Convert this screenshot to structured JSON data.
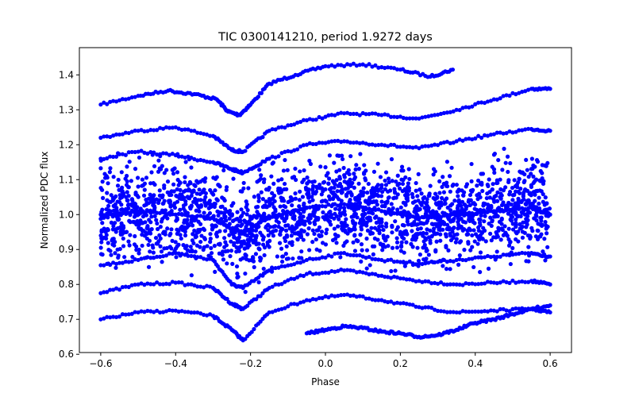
{
  "chart_data": {
    "type": "scatter",
    "title": "TIC 0300141210, period 1.9272 days",
    "xlabel": "Phase",
    "ylabel": "Normalized PDC flux",
    "xlim": [
      -0.657,
      0.657
    ],
    "ylim": [
      0.605,
      1.478
    ],
    "xticks": [
      -0.6,
      -0.4,
      -0.2,
      0.0,
      0.2,
      0.4,
      0.6
    ],
    "xtick_labels": [
      "−0.6",
      "−0.4",
      "−0.2",
      "0.0",
      "0.2",
      "0.4",
      "0.6"
    ],
    "yticks": [
      0.6,
      0.7,
      0.8,
      0.9,
      1.0,
      1.1,
      1.2,
      1.3,
      1.4
    ],
    "ytick_labels": [
      "0.6",
      "0.7",
      "0.8",
      "0.9",
      "1.0",
      "1.1",
      "1.2",
      "1.3",
      "1.4"
    ],
    "grid": false,
    "marker_color": "#0000ff",
    "series": [
      {
        "x": [
          -0.6,
          -0.5,
          -0.42,
          -0.35,
          -0.29,
          -0.26,
          -0.23,
          -0.2,
          -0.15,
          -0.08,
          0.0,
          0.1,
          0.2,
          0.28,
          0.34
        ],
        "y": [
          1.315,
          1.34,
          1.355,
          1.345,
          1.33,
          1.295,
          1.285,
          1.315,
          1.375,
          1.4,
          1.425,
          1.43,
          1.415,
          1.395,
          1.415
        ]
      },
      {
        "x": [
          -0.6,
          -0.5,
          -0.4,
          -0.3,
          -0.25,
          -0.22,
          -0.15,
          -0.05,
          0.05,
          0.15,
          0.25,
          0.35,
          0.45,
          0.55,
          0.6
        ],
        "y": [
          1.22,
          1.24,
          1.25,
          1.225,
          1.185,
          1.18,
          1.24,
          1.27,
          1.29,
          1.285,
          1.275,
          1.3,
          1.33,
          1.36,
          1.36
        ]
      },
      {
        "x": [
          -0.6,
          -0.5,
          -0.4,
          -0.3,
          -0.25,
          -0.22,
          -0.15,
          -0.05,
          0.05,
          0.15,
          0.25,
          0.35,
          0.45,
          0.55,
          0.6
        ],
        "y": [
          1.16,
          1.18,
          1.17,
          1.15,
          1.13,
          1.12,
          1.16,
          1.2,
          1.21,
          1.2,
          1.19,
          1.21,
          1.23,
          1.245,
          1.24
        ]
      },
      {
        "x": [
          -0.6,
          -0.5,
          -0.4,
          -0.3,
          -0.25,
          -0.22,
          -0.15,
          -0.05,
          0.05,
          0.15,
          0.25,
          0.35,
          0.45,
          0.55,
          0.6
        ],
        "y": [
          0.855,
          0.87,
          0.89,
          0.87,
          0.8,
          0.79,
          0.84,
          0.87,
          0.89,
          0.87,
          0.86,
          0.87,
          0.88,
          0.89,
          0.88
        ]
      },
      {
        "x": [
          -0.6,
          -0.5,
          -0.4,
          -0.3,
          -0.25,
          -0.22,
          -0.15,
          -0.05,
          0.05,
          0.15,
          0.25,
          0.35,
          0.45,
          0.55,
          0.6
        ],
        "y": [
          0.775,
          0.8,
          0.805,
          0.79,
          0.745,
          0.73,
          0.79,
          0.83,
          0.84,
          0.825,
          0.81,
          0.8,
          0.805,
          0.81,
          0.8
        ]
      },
      {
        "x": [
          -0.6,
          -0.5,
          -0.4,
          -0.3,
          -0.25,
          -0.22,
          -0.15,
          -0.05,
          0.05,
          0.15,
          0.25,
          0.35,
          0.45,
          0.55,
          0.6
        ],
        "y": [
          0.7,
          0.72,
          0.725,
          0.71,
          0.67,
          0.64,
          0.72,
          0.755,
          0.77,
          0.755,
          0.735,
          0.72,
          0.725,
          0.73,
          0.72
        ]
      },
      {
        "x": [
          -0.05,
          0.0,
          0.05,
          0.1,
          0.15,
          0.2,
          0.25,
          0.3,
          0.35,
          0.4,
          0.45,
          0.5,
          0.55,
          0.6
        ],
        "y": [
          0.66,
          0.67,
          0.68,
          0.675,
          0.665,
          0.66,
          0.65,
          0.655,
          0.67,
          0.69,
          0.7,
          0.715,
          0.73,
          0.74
        ]
      },
      {
        "x": [
          -0.6,
          -0.5,
          -0.4,
          -0.3,
          -0.25,
          -0.22,
          -0.15,
          -0.05,
          0.05,
          0.15,
          0.25,
          0.35,
          0.45,
          0.55,
          0.6
        ],
        "y": [
          1.0,
          1.01,
          1.0,
          0.99,
          0.96,
          0.95,
          0.99,
          1.02,
          1.03,
          1.01,
          0.99,
          1.0,
          1.01,
          1.02,
          1.0
        ]
      }
    ]
  }
}
